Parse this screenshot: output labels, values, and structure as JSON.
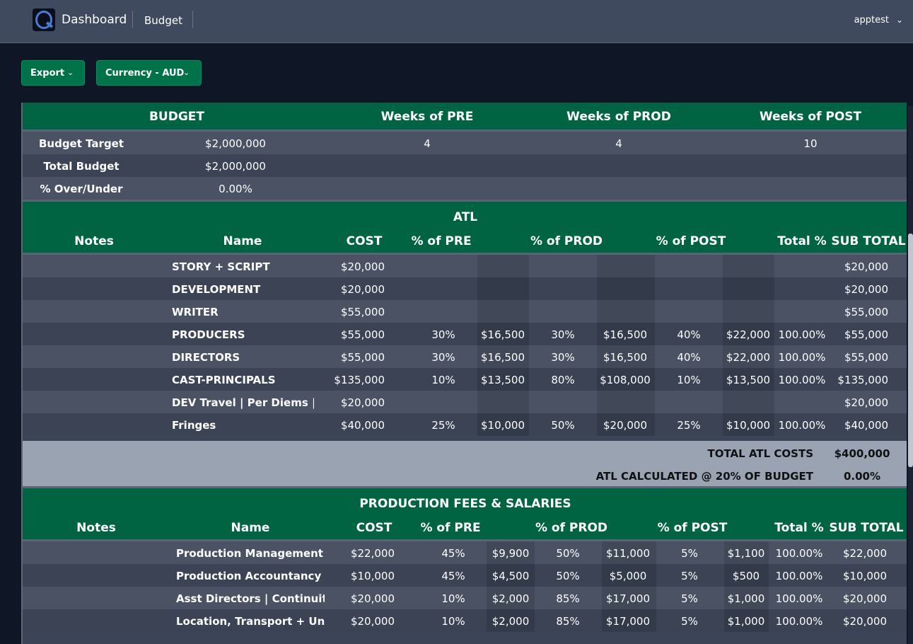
{
  "nav": {
    "brand": "Dashboard",
    "breadcrumb": "Budget",
    "user": "apptest",
    "logo_icon": "q-logo-icon"
  },
  "toolbar": {
    "export_label": "Export",
    "currency_label": "Currency - AUD"
  },
  "colors": {
    "accent_green": "#006442",
    "button_green": "#007249",
    "background": "#0f1727",
    "topbar": "#3f4a5e"
  },
  "budget_summary": {
    "headers": {
      "budget": "BUDGET",
      "weeks_pre": "Weeks of PRE",
      "weeks_prod": "Weeks of PROD",
      "weeks_post": "Weeks of POST"
    },
    "target_label": "Budget Target",
    "target_value": "$2,000,000",
    "weeks_pre": "4",
    "weeks_prod": "4",
    "weeks_post": "10",
    "total_label": "Total Budget",
    "total_value": "$2,000,000",
    "over_label": "% Over/Under",
    "over_value": "0.00%"
  },
  "atl": {
    "title": "ATL",
    "columns": {
      "notes": "Notes",
      "name": "Name",
      "cost": "COST",
      "pre": "% of PRE",
      "prod": "% of PROD",
      "post": "% of POST",
      "total": "Total %",
      "subtotal": "SUB TOTAL"
    },
    "rows": [
      {
        "notes": "",
        "name": "STORY + SCRIPT",
        "cost": "$20,000",
        "pre_pct": "",
        "pre_amt": "",
        "prod_pct": "",
        "prod_amt": "",
        "post_pct": "",
        "post_amt": "",
        "total_pct": "",
        "subtotal": "$20,000"
      },
      {
        "notes": "",
        "name": "DEVELOPMENT",
        "cost": "$20,000",
        "pre_pct": "",
        "pre_amt": "",
        "prod_pct": "",
        "prod_amt": "",
        "post_pct": "",
        "post_amt": "",
        "total_pct": "",
        "subtotal": "$20,000"
      },
      {
        "notes": "",
        "name": "WRITER",
        "cost": "$55,000",
        "pre_pct": "",
        "pre_amt": "",
        "prod_pct": "",
        "prod_amt": "",
        "post_pct": "",
        "post_amt": "",
        "total_pct": "",
        "subtotal": "$55,000"
      },
      {
        "notes": "",
        "name": "PRODUCERS",
        "cost": "$55,000",
        "pre_pct": "30%",
        "pre_amt": "$16,500",
        "prod_pct": "30%",
        "prod_amt": "$16,500",
        "post_pct": "40%",
        "post_amt": "$22,000",
        "total_pct": "100.00%",
        "subtotal": "$55,000"
      },
      {
        "notes": "",
        "name": "DIRECTORS",
        "cost": "$55,000",
        "pre_pct": "30%",
        "pre_amt": "$16,500",
        "prod_pct": "30%",
        "prod_amt": "$16,500",
        "post_pct": "40%",
        "post_amt": "$22,000",
        "total_pct": "100.00%",
        "subtotal": "$55,000"
      },
      {
        "notes": "",
        "name": "CAST-PRINCIPALS",
        "cost": "$135,000",
        "pre_pct": "10%",
        "pre_amt": "$13,500",
        "prod_pct": "80%",
        "prod_amt": "$108,000",
        "post_pct": "10%",
        "post_amt": "$13,500",
        "total_pct": "100.00%",
        "subtotal": "$135,000"
      },
      {
        "notes": "",
        "name": "DEV Travel | Per Diems | Misc",
        "cost": "$20,000",
        "pre_pct": "",
        "pre_amt": "",
        "prod_pct": "",
        "prod_amt": "",
        "post_pct": "",
        "post_amt": "",
        "total_pct": "",
        "subtotal": "$20,000"
      },
      {
        "notes": "",
        "name": "Fringes",
        "cost": "$40,000",
        "pre_pct": "25%",
        "pre_amt": "$10,000",
        "prod_pct": "50%",
        "prod_amt": "$20,000",
        "post_pct": "25%",
        "post_amt": "$10,000",
        "total_pct": "100.00%",
        "subtotal": "$40,000"
      }
    ],
    "total_label": "TOTAL ATL COSTS",
    "total_value": "$400,000",
    "calc_label": "ATL CALCULATED @ 20% OF BUDGET",
    "calc_value": "0.00%"
  },
  "production": {
    "title": "PRODUCTION FEES & SALARIES",
    "columns": {
      "notes": "Notes",
      "name": "Name",
      "cost": "COST",
      "pre": "% of PRE",
      "prod": "% of PROD",
      "post": "% of POST",
      "total": "Total %",
      "subtotal": "SUB TOTAL"
    },
    "rows": [
      {
        "notes": "",
        "name": "Production Management",
        "cost": "$22,000",
        "pre_pct": "45%",
        "pre_amt": "$9,900",
        "prod_pct": "50%",
        "prod_amt": "$11,000",
        "post_pct": "5%",
        "post_amt": "$1,100",
        "total_pct": "100.00%",
        "subtotal": "$22,000"
      },
      {
        "notes": "",
        "name": "Production Accountancy",
        "cost": "$10,000",
        "pre_pct": "45%",
        "pre_amt": "$4,500",
        "prod_pct": "50%",
        "prod_amt": "$5,000",
        "post_pct": "5%",
        "post_amt": "$500",
        "total_pct": "100.00%",
        "subtotal": "$10,000"
      },
      {
        "notes": "",
        "name": "Asst Directors | Continuity",
        "cost": "$20,000",
        "pre_pct": "10%",
        "pre_amt": "$2,000",
        "prod_pct": "85%",
        "prod_amt": "$17,000",
        "post_pct": "5%",
        "post_amt": "$1,000",
        "total_pct": "100.00%",
        "subtotal": "$20,000"
      },
      {
        "notes": "",
        "name": "Location, Transport + Unit Crew",
        "cost": "$20,000",
        "pre_pct": "10%",
        "pre_amt": "$2,000",
        "prod_pct": "85%",
        "prod_amt": "$17,000",
        "post_pct": "5%",
        "post_amt": "$1,000",
        "total_pct": "100.00%",
        "subtotal": "$20,000"
      }
    ]
  }
}
